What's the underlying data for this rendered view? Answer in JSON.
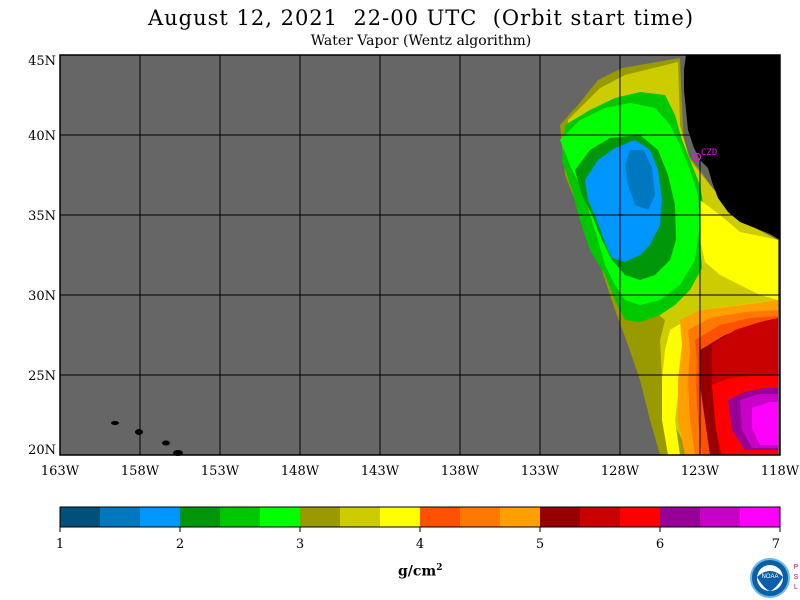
{
  "title": "August 12, 2021  22-00 UTC  (Orbit start time)",
  "subtitle": "Water Vapor (Wentz algorithm)",
  "map": {
    "lon_range": [
      -163,
      -118
    ],
    "lat_range": [
      20,
      45
    ],
    "lat_ticks": [
      {
        "v": 45,
        "label": "45N"
      },
      {
        "v": 40,
        "label": "40N"
      },
      {
        "v": 35,
        "label": "35N"
      },
      {
        "v": 30,
        "label": "30N"
      },
      {
        "v": 25,
        "label": "25N"
      },
      {
        "v": 20,
        "label": "20N"
      }
    ],
    "lon_ticks": [
      {
        "v": -163,
        "label": "163W"
      },
      {
        "v": -158,
        "label": "158W"
      },
      {
        "v": -153,
        "label": "153W"
      },
      {
        "v": -148,
        "label": "148W"
      },
      {
        "v": -143,
        "label": "143W"
      },
      {
        "v": -138,
        "label": "138W"
      },
      {
        "v": -133,
        "label": "133W"
      },
      {
        "v": -128,
        "label": "128W"
      },
      {
        "v": -123,
        "label": "123W"
      },
      {
        "v": -118,
        "label": "118W"
      }
    ],
    "station_label": "CZD",
    "colors": {
      "no_data": "#666666",
      "land": "#000000",
      "grid": "#000000",
      "station": "#ff00ff"
    }
  },
  "colorbar": {
    "range": [
      1,
      7
    ],
    "labels": [
      "1",
      "2",
      "3",
      "4",
      "5",
      "6",
      "7"
    ],
    "colors": [
      "#00507a",
      "#0078c0",
      "#0096ff",
      "#00960a",
      "#00c800",
      "#00ff00",
      "#999900",
      "#cccc00",
      "#ffff00",
      "#ff5000",
      "#ff7800",
      "#ffa000",
      "#960000",
      "#c80000",
      "#ff0000",
      "#960096",
      "#c800c8",
      "#ff00ff"
    ],
    "units_base": "g/cm",
    "units_exp": "2"
  },
  "logo": {
    "name": "NOAA",
    "side": "PSL"
  }
}
